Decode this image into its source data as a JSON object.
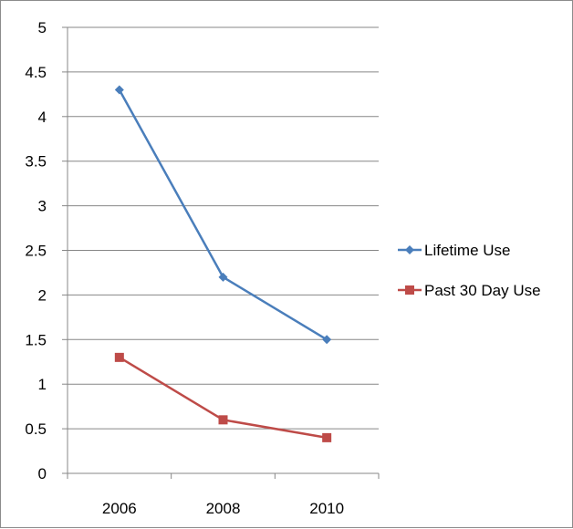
{
  "chart_data": {
    "type": "line",
    "title": "",
    "xlabel": "",
    "ylabel": "",
    "categories": [
      "2006",
      "2008",
      "2010"
    ],
    "ylim": [
      0,
      5
    ],
    "yticks": [
      0,
      0.5,
      1,
      1.5,
      2,
      2.5,
      3,
      3.5,
      4,
      4.5,
      5
    ],
    "ytick_labels": [
      "0",
      "0.5",
      "1",
      "1.5",
      "2",
      "2.5",
      "3",
      "3.5",
      "4",
      "4.5",
      "5"
    ],
    "grid": true,
    "legend_position": "right",
    "series": [
      {
        "name": "Lifetime Use",
        "values": [
          4.3,
          2.2,
          1.5
        ],
        "color": "#4a7ebb",
        "marker": "diamond"
      },
      {
        "name": "Past 30 Day Use",
        "values": [
          1.3,
          0.6,
          0.4
        ],
        "color": "#be4b48",
        "marker": "square"
      }
    ]
  }
}
